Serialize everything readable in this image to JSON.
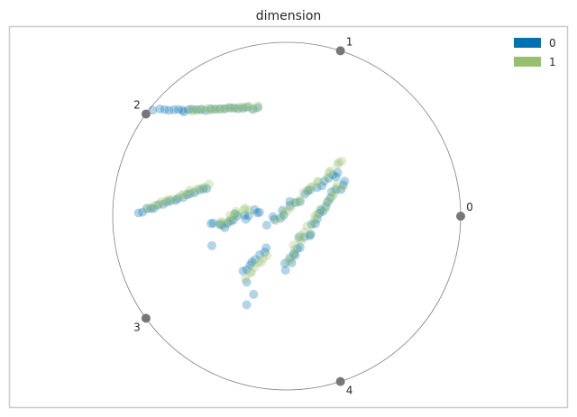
{
  "chart_data": {
    "type": "radviz",
    "title": "dimension",
    "anchors": [
      {
        "label": "0",
        "angle_deg": 0
      },
      {
        "label": "1",
        "angle_deg": 72
      },
      {
        "label": "2",
        "angle_deg": 144
      },
      {
        "label": "3",
        "angle_deg": 216
      },
      {
        "label": "4",
        "angle_deg": 288
      }
    ],
    "legend": {
      "placement": "top-right"
    },
    "grid": false,
    "series": [
      {
        "name": "0",
        "color": "#0072B2",
        "clusters": [
          {
            "from": [
              -0.73,
              0.61
            ],
            "to": [
              -0.17,
              0.62
            ],
            "n": 22,
            "spread": 0.012
          },
          {
            "from": [
              -0.85,
              0.02
            ],
            "to": [
              -0.46,
              0.16
            ],
            "n": 18,
            "spread": 0.015
          },
          {
            "from": [
              -0.43,
              -0.06
            ],
            "to": [
              -0.17,
              0.03
            ],
            "n": 16,
            "spread": 0.035
          },
          {
            "from": [
              -0.11,
              -0.04
            ],
            "to": [
              0.3,
              0.26
            ],
            "n": 20,
            "spread": 0.03
          },
          {
            "from": [
              -0.02,
              -0.3
            ],
            "to": [
              0.33,
              0.19
            ],
            "n": 26,
            "spread": 0.035
          },
          {
            "from": [
              -0.25,
              -0.33
            ],
            "to": [
              -0.12,
              -0.18
            ],
            "n": 8,
            "spread": 0.02
          }
        ],
        "outliers": [
          [
            -0.23,
            -0.51
          ],
          [
            -0.19,
            -0.45
          ],
          [
            -0.77,
            0.61
          ],
          [
            -0.59,
            0.6
          ],
          [
            -0.23,
            -0.38
          ],
          [
            -0.43,
            -0.17
          ]
        ]
      },
      {
        "name": "1",
        "color": "#97C06E",
        "clusters": [
          {
            "from": [
              -0.56,
              0.61
            ],
            "to": [
              -0.16,
              0.63
            ],
            "n": 22,
            "spread": 0.01
          },
          {
            "from": [
              -0.8,
              0.05
            ],
            "to": [
              -0.45,
              0.18
            ],
            "n": 18,
            "spread": 0.012
          },
          {
            "from": [
              -0.4,
              -0.05
            ],
            "to": [
              -0.22,
              0.05
            ],
            "n": 12,
            "spread": 0.03
          },
          {
            "from": [
              -0.06,
              -0.02
            ],
            "to": [
              0.32,
              0.32
            ],
            "n": 20,
            "spread": 0.025
          },
          {
            "from": [
              0.0,
              -0.25
            ],
            "to": [
              0.31,
              0.19
            ],
            "n": 24,
            "spread": 0.03
          },
          {
            "from": [
              -0.23,
              -0.35
            ],
            "to": [
              -0.11,
              -0.22
            ],
            "n": 8,
            "spread": 0.02
          }
        ],
        "outliers": []
      }
    ]
  }
}
